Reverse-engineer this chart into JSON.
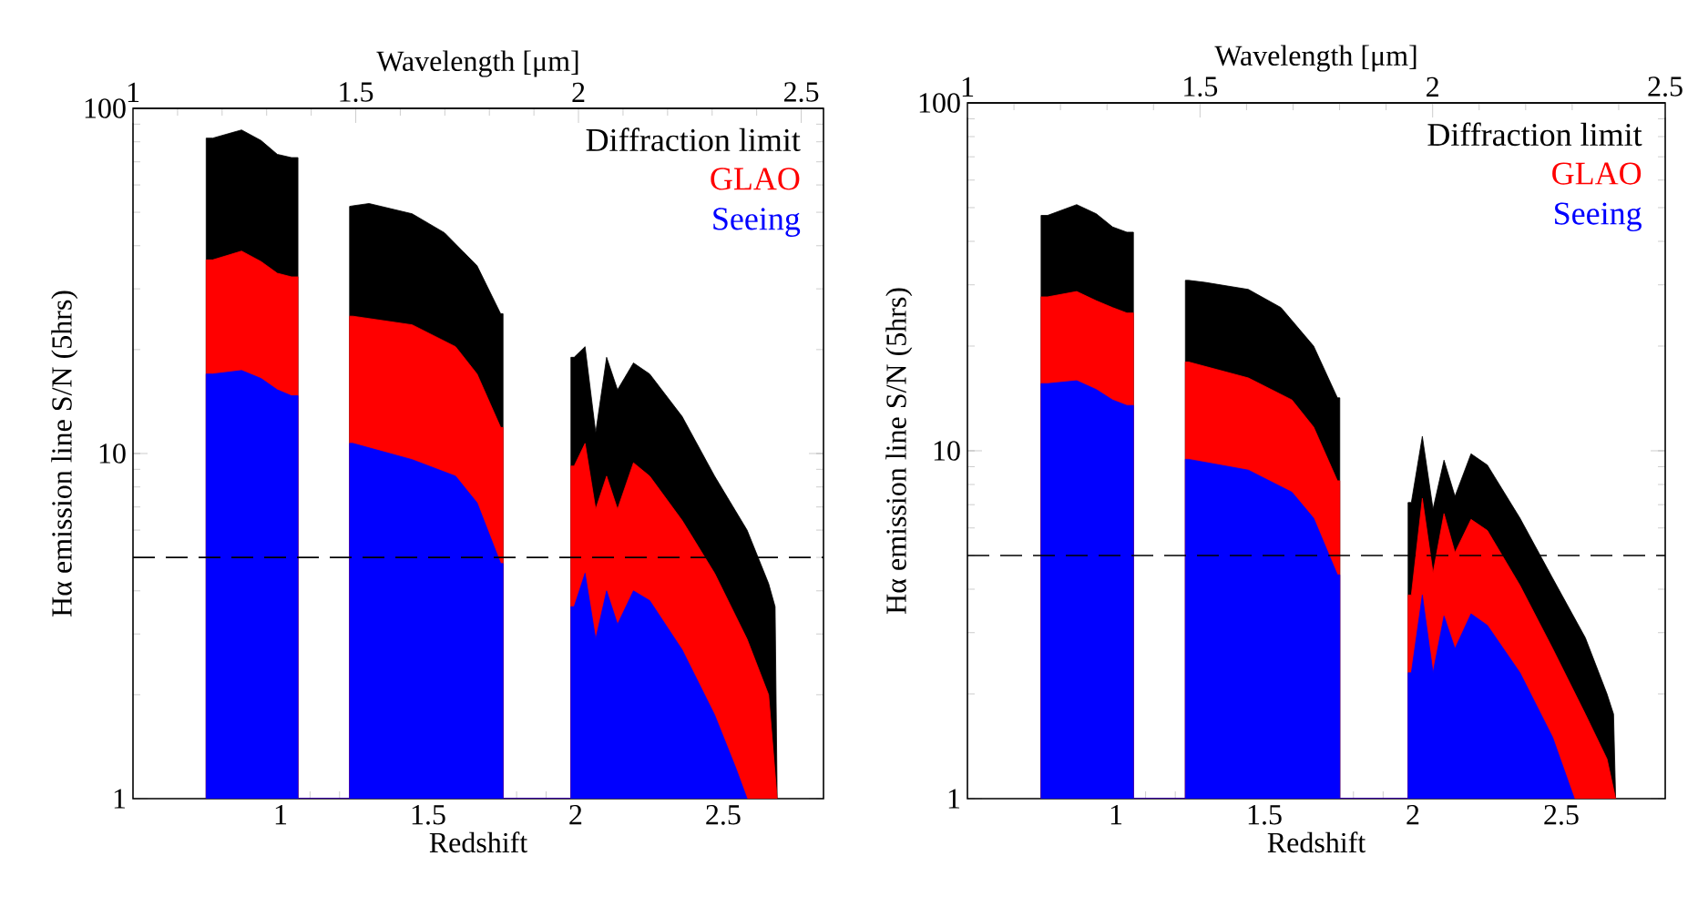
{
  "chart_data": [
    {
      "type": "area",
      "xlabel": "Redshift",
      "ylabel": "Hα emission line S/N (5hrs)",
      "x2label": "Wavelength [μm]",
      "xlim": [
        0.5,
        2.84
      ],
      "xticks": [
        1,
        1.5,
        2,
        2.5
      ],
      "x2lim": [
        1,
        2.55
      ],
      "x2ticks": [
        1,
        1.5,
        2,
        2.5
      ],
      "ylim": [
        1,
        100
      ],
      "yticks": [
        1,
        10,
        100
      ],
      "log": "y",
      "legend": "top right",
      "ref_lines": [
        {
          "axis": "y",
          "value": 5,
          "line_style": "dashed"
        }
      ],
      "series": [
        {
          "name": "Diffraction limit",
          "color": "#000000",
          "x": [
            0.748,
            0.748,
            0.77,
            0.868,
            0.934,
            0.989,
            1.037,
            1.059,
            1.059,
            1.234,
            1.234,
            1.245,
            1.3,
            1.446,
            1.556,
            1.666,
            1.746,
            1.754,
            1.754,
            1.984,
            1.984,
            1.995,
            2.032,
            2.068,
            2.105,
            2.142,
            2.196,
            2.251,
            2.361,
            2.471,
            2.581,
            2.654,
            2.676,
            2.683
          ],
          "values": [
            1,
            82,
            82,
            86.6,
            80.7,
            73.6,
            72,
            72,
            1,
            1,
            52,
            52.2,
            53,
            49.5,
            43.6,
            35,
            25.4,
            25.4,
            1,
            1,
            19,
            19,
            20.4,
            11.5,
            19,
            15.3,
            18.3,
            17,
            12.8,
            8.6,
            6,
            4.2,
            3.6,
            1
          ]
        },
        {
          "name": "GLAO",
          "color": "#ff0000",
          "x": [
            0.748,
            0.748,
            0.77,
            0.868,
            0.934,
            0.989,
            1.037,
            1.059,
            1.059,
            1.234,
            1.234,
            1.245,
            1.446,
            1.593,
            1.666,
            1.746,
            1.754,
            1.754,
            1.984,
            1.984,
            1.995,
            2.032,
            2.068,
            2.105,
            2.142,
            2.196,
            2.251,
            2.361,
            2.471,
            2.581,
            2.654,
            2.683
          ],
          "values": [
            1,
            36.4,
            36.4,
            38.6,
            36,
            33.3,
            32.5,
            32.5,
            1,
            1,
            25,
            25,
            23.6,
            20.4,
            17,
            11.9,
            11.9,
            1,
            1,
            9.2,
            9.2,
            10.7,
            6.9,
            8.6,
            6.9,
            9.4,
            8.6,
            6.4,
            4.5,
            2.9,
            2.0,
            1
          ]
        },
        {
          "name": "Seeing",
          "color": "#0000ff",
          "x": [
            0.748,
            0.748,
            0.77,
            0.868,
            0.934,
            0.989,
            1.037,
            1.059,
            1.059,
            1.234,
            1.234,
            1.245,
            1.446,
            1.593,
            1.666,
            1.746,
            1.754,
            1.754,
            1.984,
            1.984,
            1.995,
            2.032,
            2.068,
            2.105,
            2.142,
            2.196,
            2.251,
            2.361,
            2.471,
            2.544,
            2.581
          ],
          "values": [
            1,
            17,
            17,
            17.4,
            16.5,
            15.3,
            14.7,
            14.7,
            1,
            1,
            10.7,
            10.7,
            9.6,
            8.6,
            7.2,
            4.8,
            4.8,
            1,
            1,
            3.6,
            3.6,
            4.5,
            2.9,
            4.0,
            3.2,
            4.0,
            3.75,
            2.7,
            1.75,
            1.22,
            1
          ]
        }
      ]
    },
    {
      "type": "area",
      "xlabel": "Redshift",
      "ylabel": "Hα emission line S/N (5hrs)",
      "x2label": "Wavelength [μm]",
      "xlim": [
        0.5,
        2.85
      ],
      "xticks": [
        1,
        1.5,
        2,
        2.5
      ],
      "x2lim": [
        1,
        2.5
      ],
      "x2ticks": [
        1,
        1.5,
        2,
        2.5
      ],
      "ylim": [
        1,
        100
      ],
      "yticks": [
        1,
        10,
        100
      ],
      "log": "y",
      "legend": "top right",
      "ref_lines": [
        {
          "axis": "y",
          "value": 5,
          "line_style": "dashed"
        }
      ],
      "series": [
        {
          "name": "Diffraction limit",
          "color": "#000000",
          "x": [
            0.748,
            0.748,
            0.77,
            0.868,
            0.934,
            0.989,
            1.037,
            1.059,
            1.059,
            1.234,
            1.234,
            1.245,
            1.3,
            1.446,
            1.556,
            1.666,
            1.746,
            1.754,
            1.754,
            1.984,
            1.984,
            1.995,
            2.032,
            2.068,
            2.105,
            2.142,
            2.196,
            2.251,
            2.361,
            2.471,
            2.581,
            2.654,
            2.676,
            2.683
          ],
          "values": [
            1,
            47.5,
            47.5,
            51,
            48,
            44,
            42.5,
            42.5,
            1,
            1,
            30.9,
            30.9,
            30.5,
            29.1,
            25.8,
            20,
            14.2,
            14.2,
            1,
            1,
            7.1,
            7.1,
            11,
            6.8,
            9.4,
            7.4,
            9.8,
            9.1,
            6.4,
            4.3,
            2.9,
            2.0,
            1.75,
            1
          ]
        },
        {
          "name": "GLAO",
          "color": "#ff0000",
          "x": [
            0.748,
            0.748,
            0.77,
            0.868,
            0.934,
            0.989,
            1.037,
            1.059,
            1.059,
            1.234,
            1.234,
            1.245,
            1.446,
            1.593,
            1.666,
            1.746,
            1.754,
            1.754,
            1.984,
            1.984,
            1.995,
            2.032,
            2.068,
            2.105,
            2.142,
            2.196,
            2.251,
            2.361,
            2.471,
            2.581,
            2.654,
            2.683
          ],
          "values": [
            1,
            27.7,
            27.7,
            28.7,
            27,
            25.8,
            24.9,
            24.9,
            1,
            1,
            18,
            18,
            16.2,
            14,
            11.7,
            8.2,
            8.2,
            1,
            1,
            3.85,
            3.85,
            7.3,
            4.45,
            6.6,
            5.1,
            6.35,
            5.9,
            4.1,
            2.7,
            1.75,
            1.3,
            1
          ]
        },
        {
          "name": "Seeing",
          "color": "#0000ff",
          "x": [
            0.748,
            0.748,
            0.77,
            0.868,
            0.934,
            0.989,
            1.037,
            1.059,
            1.059,
            1.234,
            1.234,
            1.245,
            1.446,
            1.593,
            1.666,
            1.746,
            1.754,
            1.754,
            1.984,
            1.984,
            1.995,
            2.032,
            2.068,
            2.105,
            2.142,
            2.196,
            2.251,
            2.361,
            2.471,
            2.544
          ],
          "values": [
            1,
            15.6,
            15.6,
            15.9,
            15,
            14,
            13.5,
            13.5,
            1,
            1,
            9.45,
            9.45,
            8.8,
            7.6,
            6.4,
            4.4,
            4.4,
            1,
            1,
            2.3,
            2.3,
            3.85,
            2.3,
            3.35,
            2.7,
            3.4,
            3.15,
            2.3,
            1.5,
            1
          ]
        }
      ]
    }
  ]
}
